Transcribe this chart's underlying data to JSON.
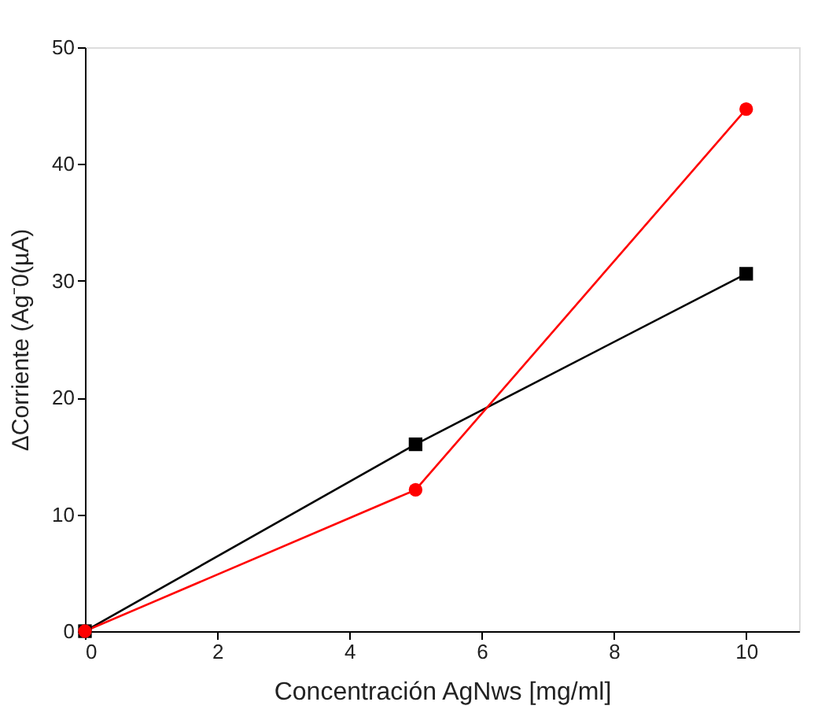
{
  "chart_data": {
    "type": "line",
    "xlabel": "Concentración AgNws [mg/ml]",
    "ylabel": "ΔCorriente (Ag⁻0(µA)",
    "x": [
      0,
      5,
      10
    ],
    "series": [
      {
        "color": "#000000",
        "values": [
          0,
          16,
          30.6
        ],
        "marker": "square"
      },
      {
        "color": "#ff0000",
        "values": [
          0,
          12.1,
          44.7
        ],
        "marker": "circle"
      }
    ],
    "xlim": [
      0,
      10.8
    ],
    "xticks": [
      0,
      2,
      4,
      6,
      8,
      10
    ],
    "ylim": [
      0,
      50
    ],
    "yticks": [
      0,
      10,
      20,
      30,
      40,
      50
    ],
    "grid": false,
    "legend": false
  }
}
